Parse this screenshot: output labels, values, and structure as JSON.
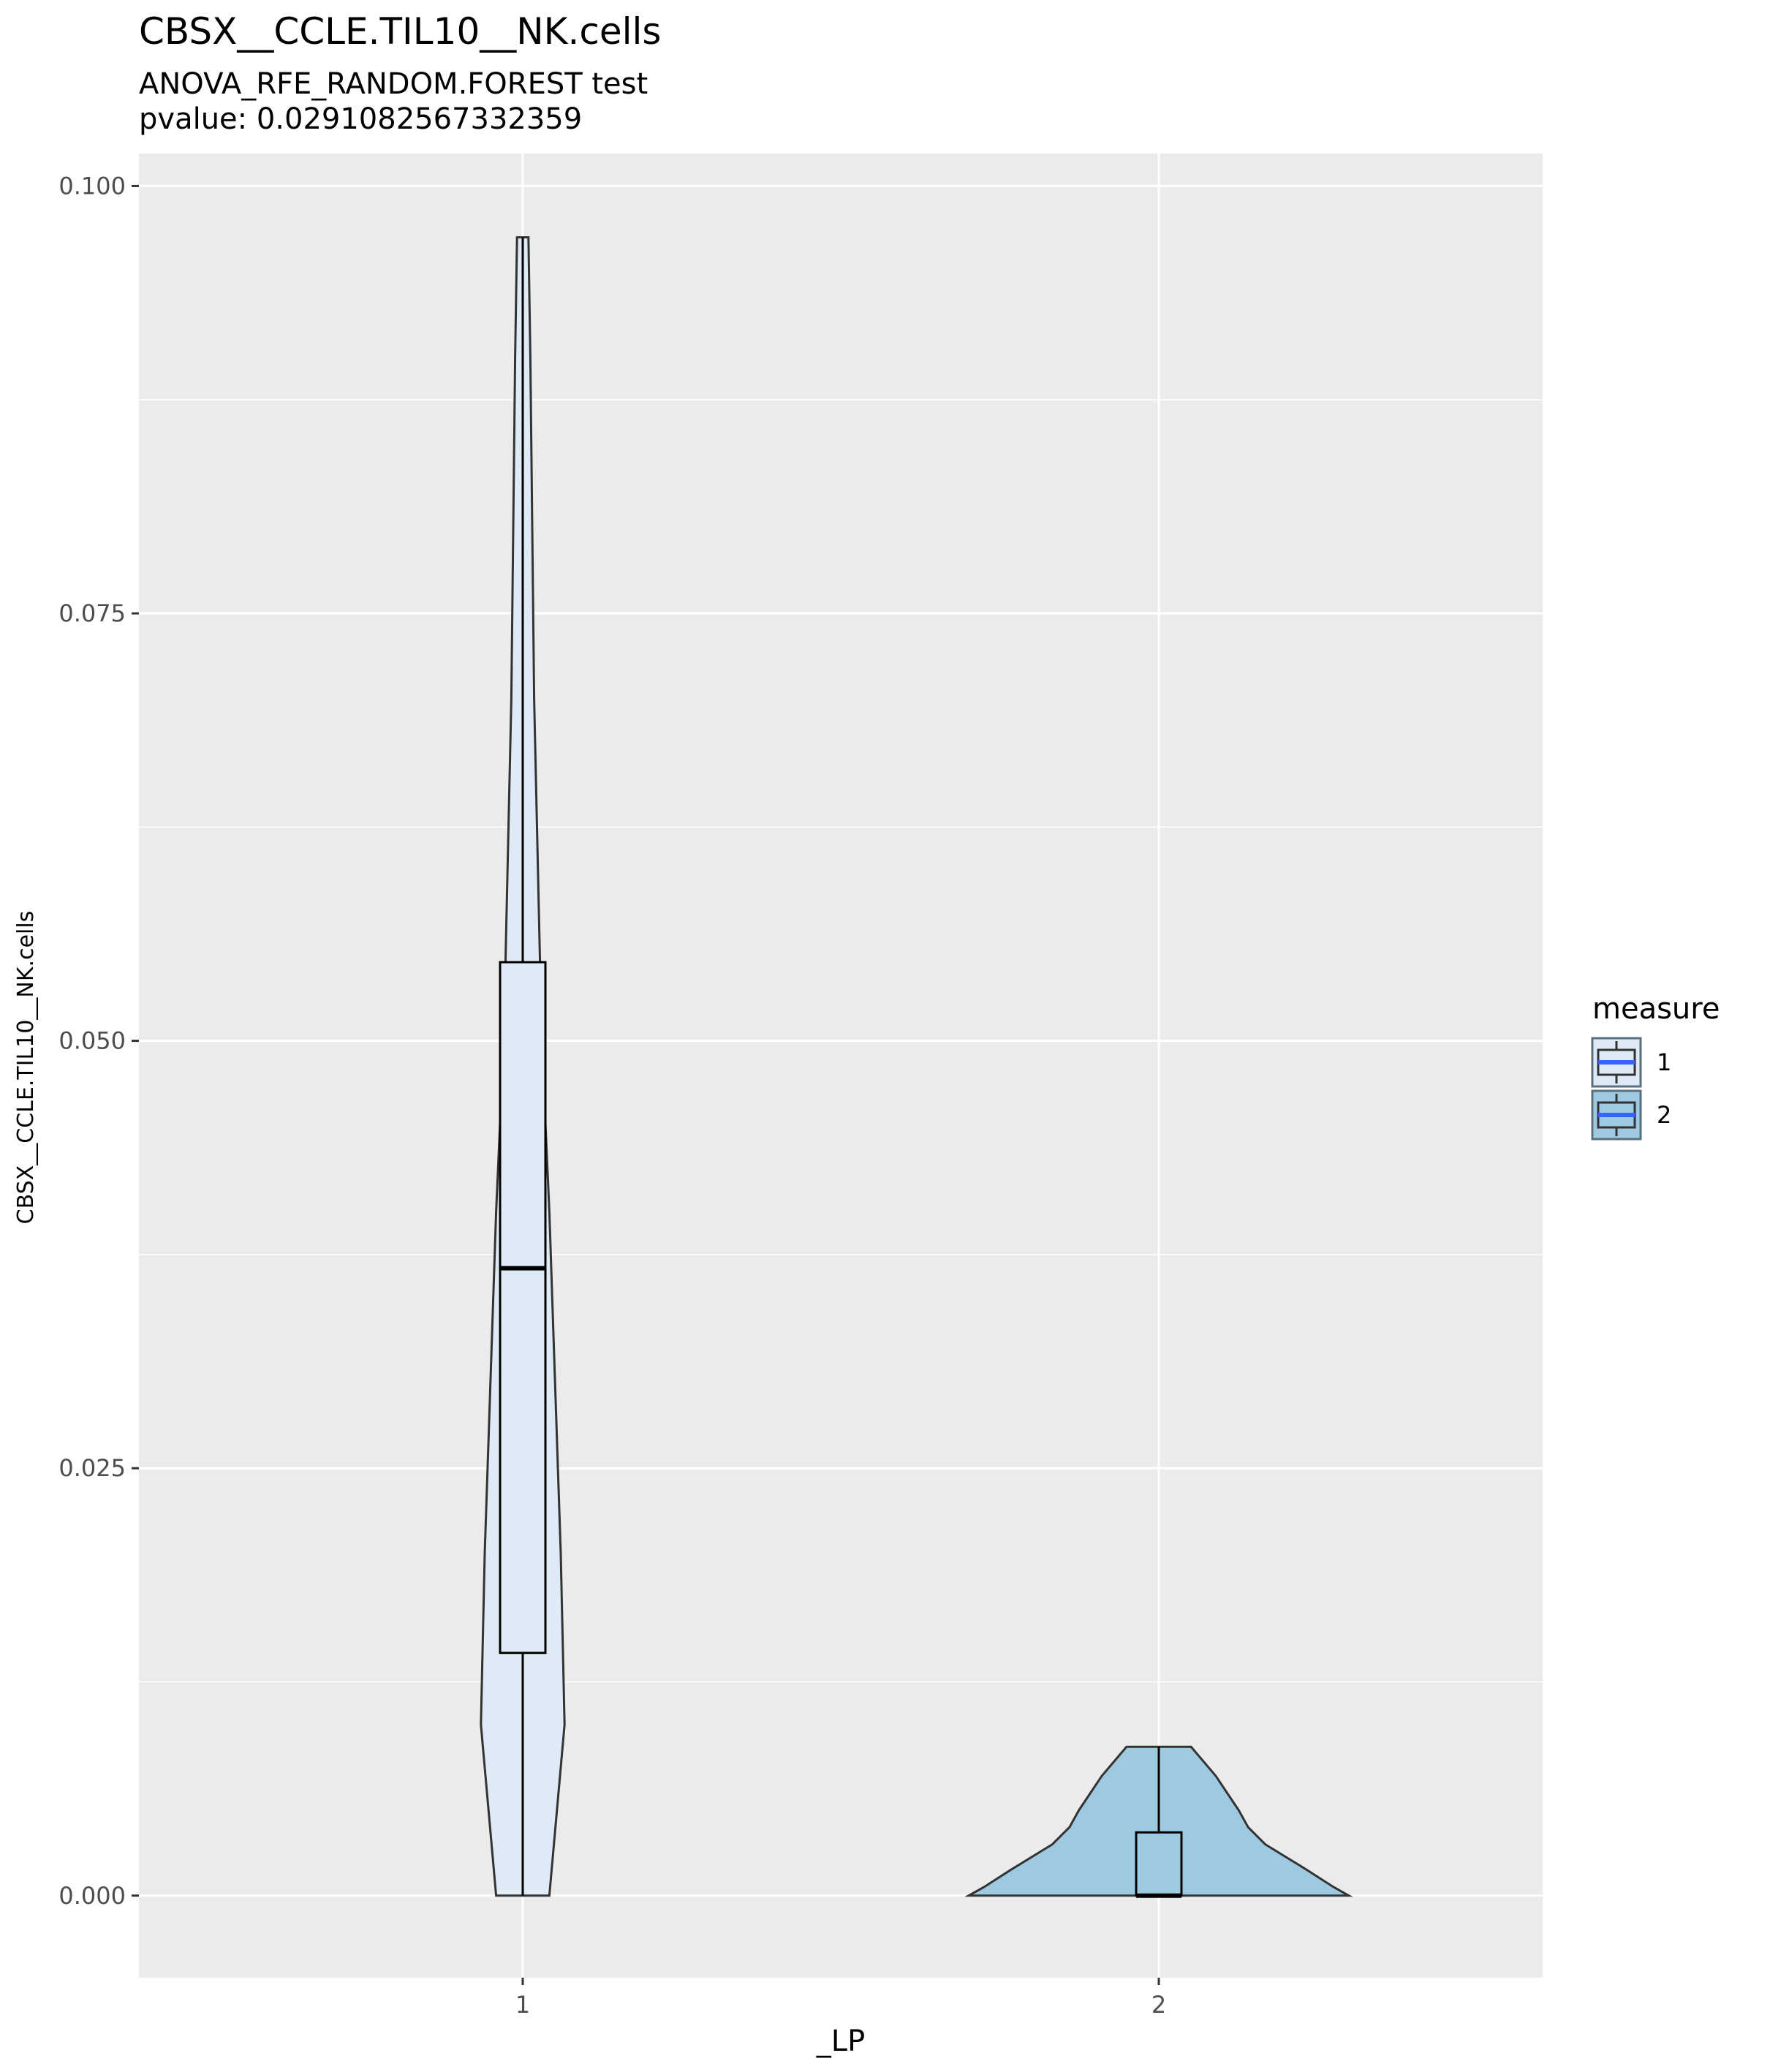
{
  "title": "CBSX__CCLE.TIL10__NK.cells",
  "subtitle_line1": "ANOVA_RFE_RANDOM.FOREST test",
  "subtitle_line2": "pvalue: 0.0291082567332359",
  "chart_data": {
    "type": "violin",
    "xlabel": "_LP",
    "ylabel": "CBSX__CCLE.TIL10__NK.cells",
    "categories": [
      "1",
      "2"
    ],
    "ylim": [
      -0.0048,
      0.1019
    ],
    "yticks": [
      0.0,
      0.025,
      0.05,
      0.075,
      0.1
    ],
    "ytick_labels": [
      "0.000",
      "0.025",
      "0.050",
      "0.075",
      "0.100"
    ],
    "grid": true,
    "legend": {
      "title": "measure",
      "placement": "right",
      "entries": [
        {
          "label": "1",
          "fill": "#deebf7"
        },
        {
          "label": "2",
          "fill": "#9ecae1"
        }
      ]
    },
    "series": [
      {
        "category": "1",
        "fill": "#deebf7",
        "violin_profile": [
          [
            0.0,
            0.14
          ],
          [
            0.01,
            0.22
          ],
          [
            0.02,
            0.2
          ],
          [
            0.03,
            0.17
          ],
          [
            0.04,
            0.14
          ],
          [
            0.05,
            0.1
          ],
          [
            0.06,
            0.08
          ],
          [
            0.07,
            0.06
          ],
          [
            0.08,
            0.05
          ],
          [
            0.09,
            0.04
          ],
          [
            0.097,
            0.03
          ]
        ],
        "box": {
          "q1": 0.0142,
          "median": 0.0367,
          "q3": 0.0546,
          "whisker_low": 0.0,
          "whisker_high": 0.097
        }
      },
      {
        "category": "2",
        "fill": "#9ecae1",
        "violin_profile": [
          [
            0.0,
            1.0
          ],
          [
            0.0005,
            0.92
          ],
          [
            0.0015,
            0.78
          ],
          [
            0.003,
            0.56
          ],
          [
            0.004,
            0.47
          ],
          [
            0.005,
            0.42
          ],
          [
            0.006,
            0.36
          ],
          [
            0.007,
            0.3
          ],
          [
            0.0087,
            0.17
          ]
        ],
        "box": {
          "q1": 0.0,
          "median": 0.0,
          "q3": 0.0037,
          "whisker_low": 0.0,
          "whisker_high": 0.0087
        }
      }
    ]
  }
}
